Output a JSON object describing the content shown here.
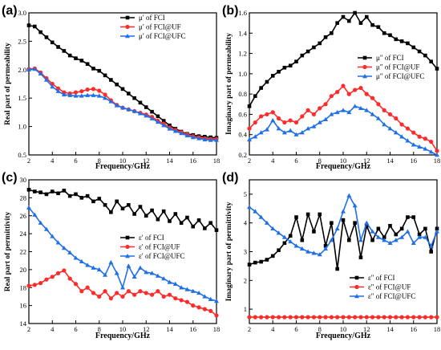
{
  "colors": {
    "FCI": "#000000",
    "FCI@UF": "#ff2a2a",
    "FCI@UFC": "#1f6fe8"
  },
  "chart_data": [
    {
      "id": "a",
      "panel_label": "(a)",
      "type": "line",
      "xlabel": "Frequency/GHz",
      "ylabel": "Real part of permeability",
      "xlim": [
        2,
        18
      ],
      "ylim": [
        0.5,
        3.0
      ],
      "xticks": [
        2,
        4,
        6,
        8,
        10,
        12,
        14,
        16,
        18
      ],
      "yticks": [
        0.5,
        1.0,
        1.5,
        2.0,
        2.5,
        3.0
      ],
      "ytick_labels": [
        "0.5",
        "1.0",
        "1.5",
        "2.0",
        "2.5",
        "3.0"
      ],
      "legend_position": "top-right",
      "x": [
        2,
        2.5,
        3,
        3.5,
        4,
        4.5,
        5,
        5.5,
        6,
        6.5,
        7,
        7.5,
        8,
        8.5,
        9,
        9.5,
        10,
        10.5,
        11,
        11.5,
        12,
        12.5,
        13,
        13.5,
        14,
        14.5,
        15,
        15.5,
        16,
        16.5,
        17,
        17.5,
        18
      ],
      "series": [
        {
          "name": "μ′ of FCI",
          "key": "FCI",
          "marker": "square",
          "values": [
            2.78,
            2.76,
            2.66,
            2.57,
            2.48,
            2.4,
            2.33,
            2.25,
            2.2,
            2.16,
            2.1,
            2.02,
            1.98,
            1.9,
            1.82,
            1.74,
            1.66,
            1.58,
            1.5,
            1.42,
            1.34,
            1.26,
            1.18,
            1.1,
            1.02,
            0.96,
            0.91,
            0.87,
            0.85,
            0.83,
            0.82,
            0.81,
            0.8
          ]
        },
        {
          "name": "μ′ of FCI@UF",
          "key": "FCI@UF",
          "marker": "circle",
          "values": [
            2.01,
            2.02,
            1.95,
            1.85,
            1.75,
            1.67,
            1.6,
            1.58,
            1.6,
            1.62,
            1.65,
            1.66,
            1.63,
            1.56,
            1.46,
            1.38,
            1.33,
            1.3,
            1.27,
            1.24,
            1.21,
            1.17,
            1.1,
            1.05,
            0.98,
            0.94,
            0.9,
            0.86,
            0.83,
            0.81,
            0.79,
            0.78,
            0.78
          ]
        },
        {
          "name": "μ′ of FCI@UFC",
          "key": "FCI@UFC",
          "marker": "triangle",
          "values": [
            2.0,
            2.01,
            1.93,
            1.82,
            1.7,
            1.62,
            1.56,
            1.55,
            1.54,
            1.54,
            1.55,
            1.55,
            1.54,
            1.5,
            1.44,
            1.37,
            1.33,
            1.3,
            1.27,
            1.23,
            1.19,
            1.14,
            1.08,
            1.02,
            0.96,
            0.92,
            0.88,
            0.84,
            0.81,
            0.79,
            0.77,
            0.76,
            0.76
          ]
        }
      ]
    },
    {
      "id": "b",
      "panel_label": "(b)",
      "type": "line",
      "xlabel": "Frequency/GHz",
      "ylabel": "Imaginary part of permeability",
      "xlim": [
        2,
        18
      ],
      "ylim": [
        0.2,
        1.6
      ],
      "xticks": [
        2,
        4,
        6,
        8,
        10,
        12,
        14,
        16,
        18
      ],
      "yticks": [
        0.2,
        0.4,
        0.6,
        0.8,
        1.0,
        1.2,
        1.4,
        1.6
      ],
      "ytick_labels": [
        "0.2",
        "0.4",
        "0.6",
        "0.8",
        "1.0",
        "1.2",
        "1.4",
        "1.6"
      ],
      "legend_position": "top-right",
      "x": [
        2,
        2.5,
        3,
        3.5,
        4,
        4.5,
        5,
        5.5,
        6,
        6.5,
        7,
        7.5,
        8,
        8.5,
        9,
        9.5,
        10,
        10.5,
        11,
        11.5,
        12,
        12.5,
        13,
        13.5,
        14,
        14.5,
        15,
        15.5,
        16,
        16.5,
        17,
        17.5,
        18
      ],
      "series": [
        {
          "name": "μ″ of FCI",
          "key": "FCI",
          "marker": "square",
          "values": [
            0.68,
            0.78,
            0.86,
            0.92,
            0.98,
            1.02,
            1.06,
            1.08,
            1.12,
            1.18,
            1.22,
            1.26,
            1.3,
            1.36,
            1.4,
            1.5,
            1.56,
            1.52,
            1.6,
            1.5,
            1.56,
            1.48,
            1.46,
            1.4,
            1.38,
            1.34,
            1.32,
            1.3,
            1.26,
            1.22,
            1.18,
            1.12,
            1.05
          ]
        },
        {
          "name": "μ″ of FCI@UF",
          "key": "FCI@UF",
          "marker": "circle",
          "values": [
            0.46,
            0.52,
            0.58,
            0.6,
            0.62,
            0.56,
            0.52,
            0.54,
            0.52,
            0.58,
            0.64,
            0.6,
            0.66,
            0.7,
            0.78,
            0.82,
            0.88,
            0.8,
            0.84,
            0.86,
            0.8,
            0.76,
            0.7,
            0.64,
            0.6,
            0.56,
            0.5,
            0.46,
            0.42,
            0.38,
            0.36,
            0.33,
            0.24
          ]
        },
        {
          "name": "μ″ of FCI@UFC",
          "key": "FCI@UFC",
          "marker": "triangle",
          "values": [
            0.35,
            0.38,
            0.42,
            0.45,
            0.54,
            0.46,
            0.42,
            0.44,
            0.4,
            0.42,
            0.46,
            0.48,
            0.52,
            0.55,
            0.6,
            0.62,
            0.64,
            0.62,
            0.68,
            0.66,
            0.64,
            0.6,
            0.56,
            0.5,
            0.46,
            0.42,
            0.38,
            0.34,
            0.3,
            0.28,
            0.26,
            0.23,
            0.2
          ]
        }
      ]
    },
    {
      "id": "c",
      "panel_label": "(c)",
      "type": "line",
      "xlabel": "Frequency/GHz",
      "ylabel": "Real part of permittivity",
      "xlim": [
        2,
        18
      ],
      "ylim": [
        14,
        30
      ],
      "xticks": [
        2,
        4,
        6,
        8,
        10,
        12,
        14,
        16,
        18
      ],
      "yticks": [
        14,
        16,
        18,
        20,
        22,
        24,
        26,
        28,
        30
      ],
      "ytick_labels": [
        "14",
        "16",
        "18",
        "20",
        "22",
        "24",
        "26",
        "28",
        "30"
      ],
      "legend_position": "right",
      "x": [
        2,
        2.5,
        3,
        3.5,
        4,
        4.5,
        5,
        5.5,
        6,
        6.5,
        7,
        7.5,
        8,
        8.5,
        9,
        9.5,
        10,
        10.5,
        11,
        11.5,
        12,
        12.5,
        13,
        13.5,
        14,
        14.5,
        15,
        15.5,
        16,
        16.5,
        17,
        17.5,
        18
      ],
      "series": [
        {
          "name": "ε′ of FCI",
          "key": "FCI",
          "marker": "square",
          "values": [
            28.9,
            28.7,
            28.6,
            28.4,
            28.7,
            28.5,
            28.8,
            28.2,
            28.4,
            28.0,
            28.2,
            27.6,
            27.9,
            27.2,
            26.4,
            27.6,
            26.8,
            27.2,
            26.2,
            27.0,
            26.0,
            26.6,
            25.6,
            26.5,
            25.4,
            26.2,
            25.2,
            25.8,
            24.8,
            25.5,
            24.6,
            25.2,
            24.4
          ]
        },
        {
          "name": "ε′ of FCI@UF",
          "key": "FCI@UF",
          "marker": "circle",
          "values": [
            18.2,
            18.3,
            18.5,
            18.9,
            19.2,
            19.6,
            19.9,
            19.0,
            18.4,
            17.6,
            18.0,
            17.4,
            17.0,
            17.6,
            16.8,
            17.4,
            17.0,
            17.6,
            17.2,
            17.6,
            17.4,
            17.2,
            17.6,
            17.0,
            17.2,
            16.8,
            16.6,
            16.4,
            16.0,
            15.8,
            15.6,
            15.4,
            14.9
          ]
        },
        {
          "name": "ε′ of FCI@UFC",
          "key": "FCI@UFC",
          "marker": "triangle",
          "values": [
            26.9,
            26.1,
            25.2,
            24.5,
            23.7,
            23.0,
            22.4,
            21.9,
            21.3,
            20.9,
            20.5,
            20.2,
            20.0,
            19.4,
            20.8,
            19.6,
            18.0,
            20.4,
            19.2,
            20.2,
            19.7,
            19.6,
            19.3,
            19.0,
            18.6,
            18.4,
            18.0,
            17.8,
            17.6,
            17.4,
            17.0,
            16.7,
            16.5
          ]
        }
      ]
    },
    {
      "id": "d",
      "panel_label": "(d)",
      "type": "line",
      "xlabel": "Frequency/GHz",
      "ylabel": "Imaginary part of permittivity",
      "xlim": [
        2,
        18
      ],
      "ylim": [
        0.5,
        5.5
      ],
      "xticks": [
        2,
        4,
        6,
        8,
        10,
        12,
        14,
        16,
        18
      ],
      "yticks": [
        1,
        2,
        3,
        4,
        5
      ],
      "ytick_labels": [
        "1",
        "2",
        "3",
        "4",
        "5"
      ],
      "legend_position": "bottom-right",
      "x": [
        2,
        2.5,
        3,
        3.5,
        4,
        4.5,
        5,
        5.5,
        6,
        6.5,
        7,
        7.5,
        8,
        8.5,
        9,
        9.5,
        10,
        10.5,
        11,
        11.5,
        12,
        12.5,
        13,
        13.5,
        14,
        14.5,
        15,
        15.5,
        16,
        16.5,
        17,
        17.5,
        18
      ],
      "series": [
        {
          "name": "ε″ of FCI",
          "key": "FCI",
          "marker": "square",
          "values": [
            2.55,
            2.62,
            2.65,
            2.72,
            2.85,
            3.05,
            3.3,
            3.55,
            4.2,
            3.4,
            4.3,
            3.7,
            4.3,
            3.2,
            4.0,
            2.4,
            4.1,
            3.4,
            4.0,
            2.8,
            3.9,
            3.4,
            3.8,
            3.5,
            3.9,
            3.6,
            3.8,
            4.2,
            4.2,
            3.6,
            3.8,
            3.0,
            3.8
          ]
        },
        {
          "name": "ε″ of FCI@UF",
          "key": "FCI@UF",
          "marker": "circle",
          "values": [
            0.72,
            0.72,
            0.72,
            0.72,
            0.72,
            0.72,
            0.72,
            0.72,
            0.72,
            0.72,
            0.72,
            0.72,
            0.72,
            0.72,
            0.72,
            0.72,
            0.72,
            0.72,
            0.72,
            0.72,
            0.72,
            0.72,
            0.72,
            0.72,
            0.72,
            0.72,
            0.72,
            0.72,
            0.72,
            0.72,
            0.72,
            0.72,
            0.72
          ]
        },
        {
          "name": "ε″ of FCI@UFC",
          "key": "FCI@UFC",
          "marker": "triangle",
          "values": [
            4.55,
            4.4,
            4.2,
            4.0,
            3.8,
            3.65,
            3.5,
            3.35,
            3.2,
            3.1,
            3.0,
            2.95,
            2.9,
            3.1,
            3.4,
            3.8,
            4.4,
            4.95,
            4.6,
            3.4,
            4.0,
            3.7,
            3.5,
            3.4,
            3.3,
            3.4,
            3.5,
            3.7,
            3.3,
            3.5,
            3.5,
            3.2,
            3.7
          ]
        }
      ]
    }
  ]
}
